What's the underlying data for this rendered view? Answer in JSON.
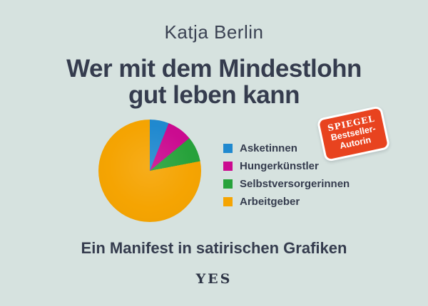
{
  "cover": {
    "author": "Katja Berlin",
    "title_line1": "Wer mit dem Mindestlohn",
    "title_line2": "gut leben kann",
    "subtitle": "Ein Manifest in satirischen Grafiken",
    "publisher_logo": "YES"
  },
  "badge": {
    "line1": "SPIEGEL",
    "line2": "Bestseller-",
    "line3": "Autorin",
    "background_color": "#e8431f",
    "text_color": "#ffffff"
  },
  "chart_data": {
    "type": "pie",
    "title": "Wer mit dem Mindestlohn gut leben kann",
    "categories": [
      "Asketinnen",
      "Hungerkünstler",
      "Selbstversorgerinnen",
      "Arbeitgeber"
    ],
    "values": [
      6,
      8,
      8,
      78
    ],
    "colors": [
      "#2089cf",
      "#cb0b90",
      "#27a23b",
      "#f5a402"
    ],
    "legend_position": "right",
    "start_angle_deg": 0,
    "direction": "clockwise"
  },
  "colors": {
    "background": "#d6e2df",
    "text": "#353c4e"
  }
}
